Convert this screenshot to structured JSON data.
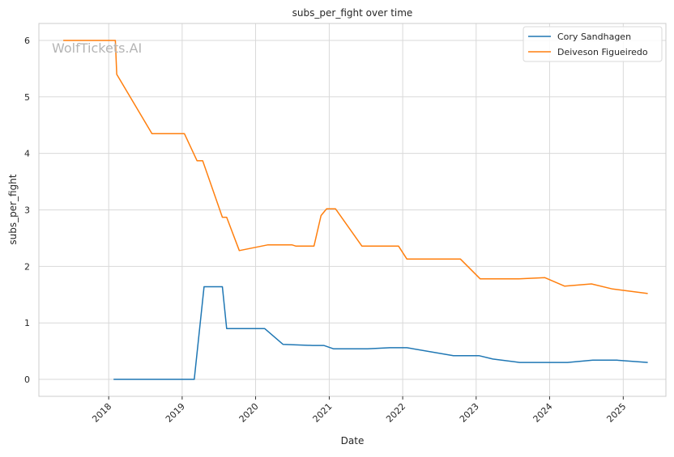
{
  "chart_data": {
    "type": "line",
    "title": "subs_per_fight over time",
    "xlabel": "Date",
    "ylabel": "subs_per_fight",
    "watermark": "WolfTickets.AI",
    "legend_position": "top-right",
    "grid": true,
    "xlim": [
      "2017-01-19",
      "2025-08-01"
    ],
    "ylim": [
      -0.3,
      6.3
    ],
    "x_ticks": [
      {
        "date": "2018-01-01",
        "label": "2018"
      },
      {
        "date": "2019-01-01",
        "label": "2019"
      },
      {
        "date": "2020-01-01",
        "label": "2020"
      },
      {
        "date": "2021-01-01",
        "label": "2021"
      },
      {
        "date": "2022-01-01",
        "label": "2022"
      },
      {
        "date": "2023-01-01",
        "label": "2023"
      },
      {
        "date": "2024-01-01",
        "label": "2024"
      },
      {
        "date": "2025-01-01",
        "label": "2025"
      }
    ],
    "y_ticks": [
      0,
      1,
      2,
      3,
      4,
      5,
      6
    ],
    "series": [
      {
        "name": "Cory Sandhagen",
        "color": "#1f77b4",
        "points": [
          [
            "2018-01-25",
            0
          ],
          [
            "2019-03-02",
            0
          ],
          [
            "2019-04-20",
            1.64
          ],
          [
            "2019-07-20",
            1.64
          ],
          [
            "2019-08-10",
            0.9
          ],
          [
            "2020-02-15",
            0.9
          ],
          [
            "2020-05-16",
            0.62
          ],
          [
            "2020-10-10",
            0.6
          ],
          [
            "2020-12-05",
            0.6
          ],
          [
            "2021-01-23",
            0.54
          ],
          [
            "2021-07-10",
            0.54
          ],
          [
            "2021-10-30",
            0.56
          ],
          [
            "2022-01-22",
            0.56
          ],
          [
            "2022-09-10",
            0.42
          ],
          [
            "2023-01-15",
            0.42
          ],
          [
            "2023-03-25",
            0.36
          ],
          [
            "2023-08-05",
            0.3
          ],
          [
            "2024-03-30",
            0.3
          ],
          [
            "2024-08-03",
            0.34
          ],
          [
            "2024-12-01",
            0.34
          ],
          [
            "2025-05-03",
            0.3
          ]
        ]
      },
      {
        "name": "Deiveson Figueiredo",
        "color": "#ff7f0e",
        "points": [
          [
            "2017-05-20",
            6
          ],
          [
            "2018-02-03",
            6
          ],
          [
            "2018-02-10",
            5.4
          ],
          [
            "2018-08-04",
            4.35
          ],
          [
            "2019-01-12",
            4.35
          ],
          [
            "2019-03-16",
            3.87
          ],
          [
            "2019-04-13",
            3.87
          ],
          [
            "2019-07-20",
            2.87
          ],
          [
            "2019-08-10",
            2.87
          ],
          [
            "2019-10-12",
            2.28
          ],
          [
            "2020-02-29",
            2.38
          ],
          [
            "2020-07-01",
            2.38
          ],
          [
            "2020-07-18",
            2.36
          ],
          [
            "2020-10-17",
            2.36
          ],
          [
            "2020-11-21",
            2.9
          ],
          [
            "2020-12-19",
            3.02
          ],
          [
            "2021-02-01",
            3.02
          ],
          [
            "2021-06-12",
            2.36
          ],
          [
            "2021-12-11",
            2.36
          ],
          [
            "2022-01-22",
            2.13
          ],
          [
            "2022-10-15",
            2.13
          ],
          [
            "2023-01-21",
            1.78
          ],
          [
            "2023-08-01",
            1.78
          ],
          [
            "2023-12-09",
            1.8
          ],
          [
            "2024-03-16",
            1.65
          ],
          [
            "2024-07-27",
            1.69
          ],
          [
            "2024-11-09",
            1.6
          ],
          [
            "2025-05-03",
            1.52
          ]
        ]
      }
    ]
  }
}
